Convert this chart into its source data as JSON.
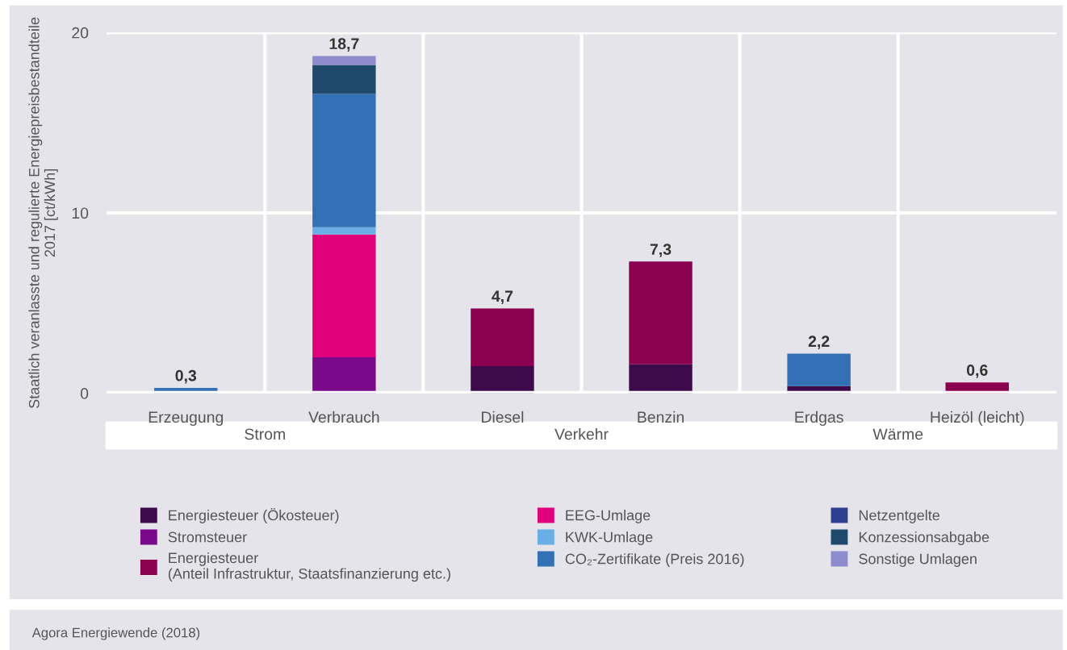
{
  "chart_data": {
    "type": "bar",
    "stacked": true,
    "ylabel": "Staatlich veranlasste und regulierte Energiepreisbestandteile 2017 [ct/kWh]",
    "categories": [
      "Erzeugung",
      "Verbrauch",
      "Diesel",
      "Benzin",
      "Erdgas",
      "Heizöl (leicht)"
    ],
    "series": [
      {
        "name": "Energiesteuer (Ökosteuer)",
        "color": "#3d0a4a",
        "values": [
          null,
          null,
          1.5,
          1.6,
          0.4,
          null
        ]
      },
      {
        "name": "Stromsteuer",
        "color": "#7a0a8a",
        "values": [
          null,
          2.0,
          null,
          null,
          null,
          null
        ]
      },
      {
        "name": "Energiesteuer\n(Anteil Infrastruktur, Staatsfinanzierung etc.)",
        "color": "#8c0050",
        "values": [
          null,
          null,
          3.2,
          5.7,
          null,
          0.6
        ]
      },
      {
        "name": "EEG-Umlage",
        "color": "#e0007a",
        "values": [
          null,
          6.8,
          null,
          null,
          null,
          null
        ]
      },
      {
        "name": "KWK-Umlage",
        "color": "#6aaee6",
        "values": [
          null,
          0.4,
          null,
          null,
          null,
          null
        ]
      },
      {
        "name": "CO₂-Zertifikate (Preis 2016)",
        "color": "#3470b5",
        "values": [
          0.3,
          7.4,
          null,
          null,
          1.8,
          null
        ]
      },
      {
        "name": "Netzentgelte",
        "color": "#2e3f8f",
        "values": [
          null,
          null,
          null,
          null,
          null,
          null
        ]
      },
      {
        "name": "Konzessionsabgabe",
        "color": "#1f4a6b",
        "values": [
          null,
          1.6,
          null,
          null,
          null,
          null
        ]
      },
      {
        "name": "Sonstige Umlagen",
        "color": "#8e8ccc",
        "values": [
          null,
          0.5,
          null,
          null,
          null,
          null
        ]
      }
    ],
    "totals": [
      "0,3",
      "18,7",
      "4,7",
      "7,3",
      "2,2",
      "0,6"
    ],
    "ylim": [
      0,
      20
    ],
    "yticks": [
      0,
      10,
      20
    ],
    "grid": true,
    "legend": "bottom",
    "annotations": [
      "Strom",
      "Verkehr",
      "Wärme",
      "Agora Energiewende (2018)"
    ]
  }
}
